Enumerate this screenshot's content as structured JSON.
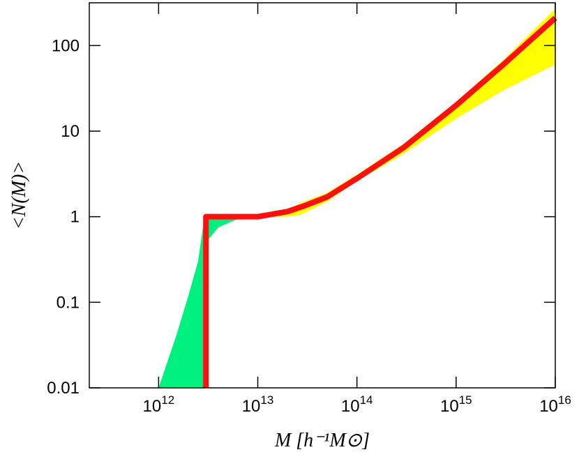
{
  "chart_data": {
    "type": "line",
    "x_label": "M  [h⁻¹M⊙]",
    "y_label": "<N(M)>",
    "log_x": true,
    "log_y": true,
    "xlim": [
      200000000000.0,
      1e+16
    ],
    "ylim": [
      0.01,
      316
    ],
    "xticks": [
      {
        "value": 1000000000000.0,
        "label": "10^12"
      },
      {
        "value": 10000000000000.0,
        "label": "10^13"
      },
      {
        "value": 100000000000000.0,
        "label": "10^14"
      },
      {
        "value": 1000000000000000.0,
        "label": "10^15"
      },
      {
        "value": 1e+16,
        "label": "10^16"
      }
    ],
    "yticks": [
      0.01,
      0.1,
      1,
      10,
      100
    ],
    "bands": [
      {
        "color": "#ffff00",
        "x": [
          10000000000000.0,
          20000000000000.0,
          27000000000000.0,
          50000000000000.0,
          100000000000000.0,
          300000000000000.0,
          1000000000000000.0,
          3000000000000000.0,
          1e+16
        ],
        "upper": [
          1,
          1.2,
          1.45,
          1.9,
          3.1,
          7.2,
          22,
          68,
          270
        ],
        "lower": [
          1,
          1,
          1.05,
          1.5,
          2.6,
          5.5,
          14,
          30,
          60
        ]
      },
      {
        "color": "#00f080",
        "x": [
          1000000000000.0,
          1500000000000.0,
          2000000000000.0,
          2500000000000.0,
          2900000000000.0,
          3000000000000.0,
          4000000000000.0,
          6000000000000.0,
          10000000000000.0
        ],
        "upper": [
          0.01,
          0.04,
          0.12,
          0.3,
          1,
          1,
          1,
          1,
          1
        ],
        "lower": [
          0.01,
          0.01,
          0.01,
          0.01,
          0.01,
          0.5,
          0.75,
          0.92,
          1
        ]
      }
    ],
    "series": [
      {
        "color": "#ff1010",
        "x": [
          3000000000000.0,
          3000000000000.0,
          5000000000000.0,
          10000000000000.0,
          20000000000000.0,
          30000000000000.0,
          50000000000000.0,
          100000000000000.0,
          300000000000000.0,
          1000000000000000.0,
          3000000000000000.0,
          1e+16
        ],
        "values": [
          0.01,
          1,
          1,
          1,
          1.15,
          1.35,
          1.7,
          2.8,
          6.5,
          20,
          60,
          210
        ]
      }
    ]
  }
}
